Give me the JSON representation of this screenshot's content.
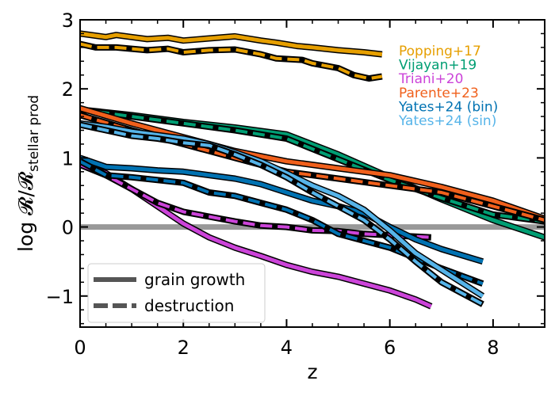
{
  "chart_data": {
    "type": "line",
    "xlabel": "z",
    "ylabel": "log R/R_stellar prod",
    "ylabel_main": "log 𝓡/𝓡",
    "ylabel_sub": "stellar prod",
    "xlim": [
      0,
      9
    ],
    "ylim": [
      -1.45,
      3
    ],
    "x_ticks": [
      0,
      2,
      4,
      6,
      8
    ],
    "x_tick_labels": [
      "0",
      "2",
      "4",
      "6",
      "8"
    ],
    "y_ticks": [
      -1,
      0,
      1,
      2,
      3
    ],
    "y_tick_labels": [
      "−1",
      "0",
      "1",
      "2",
      "3"
    ],
    "reference_line": {
      "y": 0,
      "color": "#999999"
    },
    "legend": {
      "placement": "bottom-left",
      "entries": [
        {
          "label": "grain growth",
          "style": "solid"
        },
        {
          "label": "destruction",
          "style": "dashed"
        }
      ]
    },
    "annotations": [
      {
        "text": "Popping+17",
        "color": "#E69F00"
      },
      {
        "text": "Vijayan+19",
        "color": "#009E73"
      },
      {
        "text": "Triani+20",
        "color": "#CC44D9"
      },
      {
        "text": "Parente+23",
        "color": "#F0601C"
      },
      {
        "text": "Yates+24 (bin)",
        "color": "#0072B2"
      },
      {
        "text": "Yates+24 (sin)",
        "color": "#56B4E9"
      }
    ],
    "series": [
      {
        "name": "Popping+17",
        "process": "grain growth",
        "color": "#E69F00",
        "x": [
          0,
          0.5,
          0.7,
          1,
          1.3,
          1.7,
          2,
          2.5,
          3,
          3.5,
          3.8,
          4.2,
          4.5,
          5,
          5.5,
          5.85
        ],
        "y": [
          2.8,
          2.75,
          2.78,
          2.75,
          2.72,
          2.74,
          2.7,
          2.73,
          2.76,
          2.7,
          2.67,
          2.62,
          2.6,
          2.56,
          2.53,
          2.5
        ]
      },
      {
        "name": "Popping+17",
        "process": "destruction",
        "color": "#E69F00",
        "x": [
          0,
          0.3,
          0.7,
          1,
          1.3,
          1.7,
          2,
          2.5,
          3,
          3.5,
          3.8,
          4.3,
          4.5,
          5,
          5.3,
          5.6,
          5.85
        ],
        "y": [
          2.65,
          2.6,
          2.6,
          2.58,
          2.56,
          2.58,
          2.53,
          2.56,
          2.57,
          2.5,
          2.44,
          2.42,
          2.37,
          2.3,
          2.2,
          2.15,
          2.18
        ]
      },
      {
        "name": "Vijayan+19",
        "process": "grain growth",
        "color": "#009E73",
        "x": [
          0,
          1,
          2,
          3,
          4,
          5,
          6,
          7,
          8,
          9
        ],
        "y": [
          1.7,
          1.62,
          1.52,
          1.44,
          1.34,
          1.05,
          0.72,
          0.4,
          0.1,
          -0.15
        ]
      },
      {
        "name": "Vijayan+19",
        "process": "destruction",
        "color": "#009E73",
        "x": [
          0,
          1,
          2,
          3,
          4,
          5,
          6,
          7,
          8,
          9
        ],
        "y": [
          1.7,
          1.6,
          1.5,
          1.4,
          1.28,
          0.98,
          0.68,
          0.42,
          0.18,
          0.08
        ]
      },
      {
        "name": "Parente+23",
        "process": "grain growth",
        "color": "#F0601C",
        "x": [
          0,
          1,
          2,
          3,
          4,
          5,
          6,
          7,
          8,
          9
        ],
        "y": [
          1.72,
          1.5,
          1.3,
          1.1,
          0.95,
          0.85,
          0.75,
          0.58,
          0.38,
          0.12
        ]
      },
      {
        "name": "Parente+23",
        "process": "destruction",
        "color": "#F0601C",
        "x": [
          0,
          1,
          2,
          3,
          4,
          5,
          6,
          7,
          8,
          9
        ],
        "y": [
          1.62,
          1.4,
          1.2,
          1.0,
          0.8,
          0.7,
          0.6,
          0.5,
          0.3,
          0.1
        ]
      },
      {
        "name": "Triani+20",
        "process": "grain growth",
        "color": "#CC44D9",
        "x": [
          0,
          0.5,
          1,
          1.5,
          2,
          2.5,
          3,
          3.5,
          4,
          4.5,
          5,
          5.5,
          6,
          6.5,
          6.8
        ],
        "y": [
          0.9,
          0.78,
          0.55,
          0.3,
          0.05,
          -0.15,
          -0.3,
          -0.42,
          -0.55,
          -0.65,
          -0.72,
          -0.82,
          -0.92,
          -1.05,
          -1.15
        ]
      },
      {
        "name": "Triani+20",
        "process": "destruction",
        "color": "#CC44D9",
        "x": [
          0,
          0.5,
          1,
          1.5,
          2,
          2.5,
          3,
          3.5,
          4,
          4.5,
          5,
          5.5,
          6,
          6.8
        ],
        "y": [
          0.9,
          0.75,
          0.55,
          0.35,
          0.22,
          0.15,
          0.08,
          0.02,
          0.0,
          -0.05,
          -0.06,
          -0.1,
          -0.12,
          -0.15
        ]
      },
      {
        "name": "Yates+24 (bin)",
        "process": "grain growth",
        "color": "#0072B2",
        "x": [
          0,
          0.5,
          1,
          1.5,
          2,
          2.5,
          3,
          3.5,
          4,
          4.5,
          5,
          5.5,
          6,
          6.5,
          7,
          7.8
        ],
        "y": [
          1.0,
          0.87,
          0.85,
          0.82,
          0.8,
          0.75,
          0.7,
          0.62,
          0.5,
          0.38,
          0.3,
          0.2,
          0.0,
          -0.18,
          -0.32,
          -0.5
        ]
      },
      {
        "name": "Yates+24 (bin)",
        "process": "destruction",
        "color": "#0072B2",
        "x": [
          0,
          0.5,
          1,
          1.5,
          2,
          2.5,
          3,
          3.5,
          4,
          4.5,
          5,
          5.5,
          6,
          6.5,
          7,
          7.8
        ],
        "y": [
          0.95,
          0.75,
          0.72,
          0.68,
          0.64,
          0.5,
          0.45,
          0.35,
          0.25,
          0.1,
          -0.1,
          -0.2,
          -0.3,
          -0.45,
          -0.6,
          -0.82
        ]
      },
      {
        "name": "Yates+24 (sin)",
        "process": "grain growth",
        "color": "#56B4E9",
        "x": [
          0,
          0.5,
          1,
          1.5,
          2,
          2.5,
          3,
          3.5,
          4,
          4.5,
          5,
          5.5,
          6,
          6.5,
          7,
          7.8
        ],
        "y": [
          1.5,
          1.45,
          1.38,
          1.33,
          1.28,
          1.2,
          1.08,
          0.95,
          0.78,
          0.6,
          0.45,
          0.25,
          -0.05,
          -0.38,
          -0.62,
          -1.0
        ]
      },
      {
        "name": "Yates+24 (sin)",
        "process": "destruction",
        "color": "#56B4E9",
        "x": [
          0,
          0.5,
          1,
          1.5,
          2,
          2.5,
          3,
          3.5,
          4,
          4.5,
          5,
          5.5,
          6,
          6.5,
          7,
          7.8
        ],
        "y": [
          1.48,
          1.4,
          1.32,
          1.28,
          1.22,
          1.18,
          1.05,
          0.9,
          0.72,
          0.5,
          0.3,
          0.1,
          -0.18,
          -0.5,
          -0.8,
          -1.12
        ]
      }
    ]
  }
}
